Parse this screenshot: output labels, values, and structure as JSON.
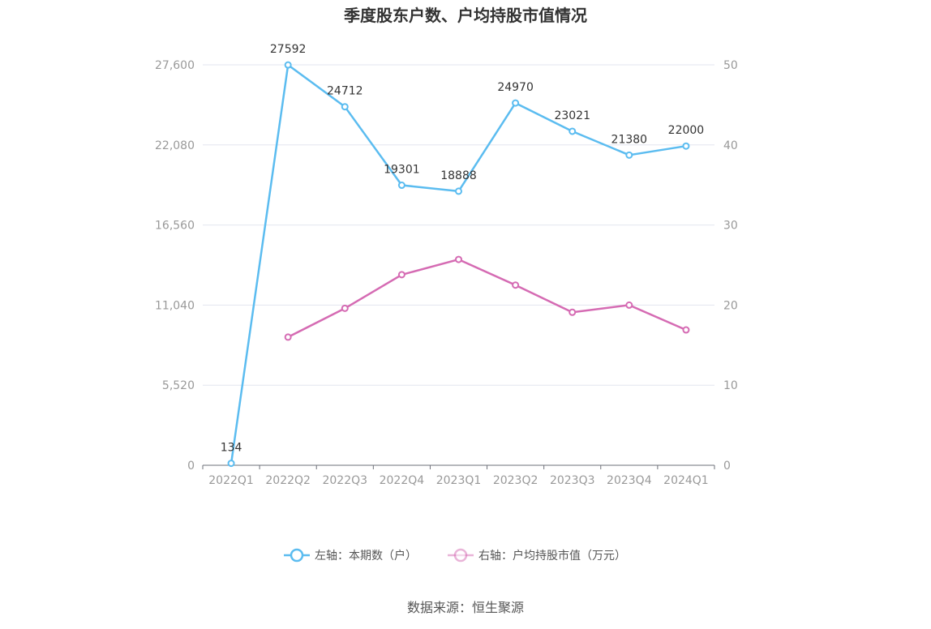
{
  "chart_data": {
    "type": "line",
    "title": "季度股东户数、户均持股市值情况",
    "categories": [
      "2022Q1",
      "2022Q2",
      "2022Q3",
      "2022Q4",
      "2023Q1",
      "2023Q2",
      "2023Q3",
      "2023Q4",
      "2024Q1"
    ],
    "left_axis": {
      "ticks": [
        "0",
        "5,520",
        "11,040",
        "16,560",
        "22,080",
        "27,600"
      ],
      "range": [
        0,
        27600
      ]
    },
    "right_axis": {
      "ticks": [
        "0",
        "10",
        "20",
        "30",
        "40",
        "50"
      ],
      "range": [
        0,
        50
      ]
    },
    "series": [
      {
        "name": "左轴：本期数（户）",
        "axis": "left",
        "color": "#5bbcf0",
        "values": [
          134,
          27592,
          24712,
          19301,
          18888,
          24970,
          23021,
          21380,
          22000
        ],
        "labels": [
          "134",
          "27592",
          "24712",
          "19301",
          "18888",
          "24970",
          "23021",
          "21380",
          "22000"
        ]
      },
      {
        "name": "右轴：户均持股市值（万元）",
        "axis": "right",
        "color": "#d56bb3",
        "values": [
          null,
          16.0,
          19.6,
          23.8,
          25.7,
          22.5,
          19.1,
          20.0,
          16.9
        ]
      }
    ],
    "grid": true,
    "legend_position": "bottom"
  },
  "source": "数据来源：恒生聚源"
}
